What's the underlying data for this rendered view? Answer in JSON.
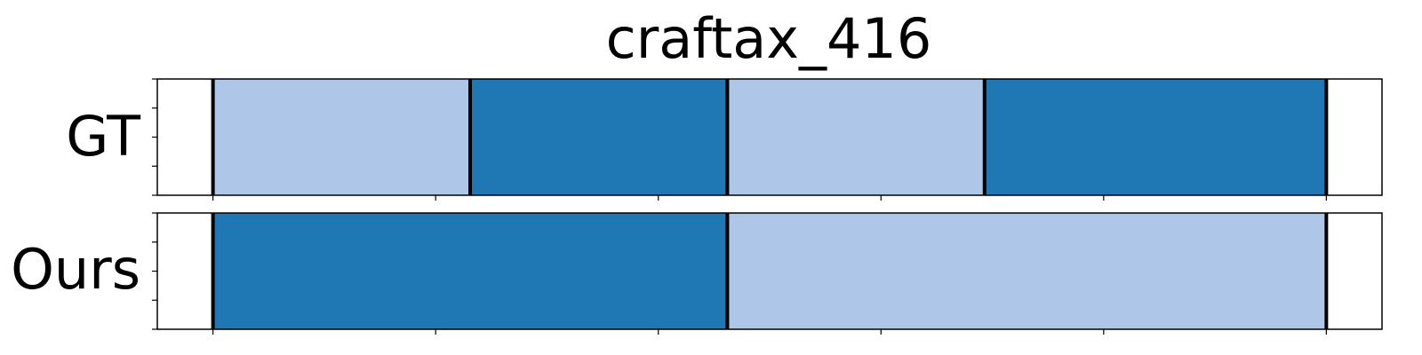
{
  "chart_data": {
    "type": "bar",
    "title": "craftax_416",
    "xlim": [
      0,
      1100
    ],
    "x_ticks": [
      50,
      250,
      450,
      650,
      850,
      1050
    ],
    "rows": [
      {
        "label": "GT",
        "segments": [
          {
            "start": 50,
            "end": 281,
            "color": "#aec7e8"
          },
          {
            "start": 281,
            "end": 512,
            "color": "#1f77b4"
          },
          {
            "start": 512,
            "end": 743,
            "color": "#aec7e8"
          },
          {
            "start": 743,
            "end": 1050,
            "color": "#1f77b4"
          }
        ],
        "boundaries": [
          50,
          281,
          512,
          743,
          1050
        ]
      },
      {
        "label": "Ours",
        "segments": [
          {
            "start": 50,
            "end": 512,
            "color": "#1f77b4"
          },
          {
            "start": 512,
            "end": 1050,
            "color": "#aec7e8"
          }
        ],
        "boundaries": [
          50,
          512,
          1050
        ]
      }
    ]
  }
}
